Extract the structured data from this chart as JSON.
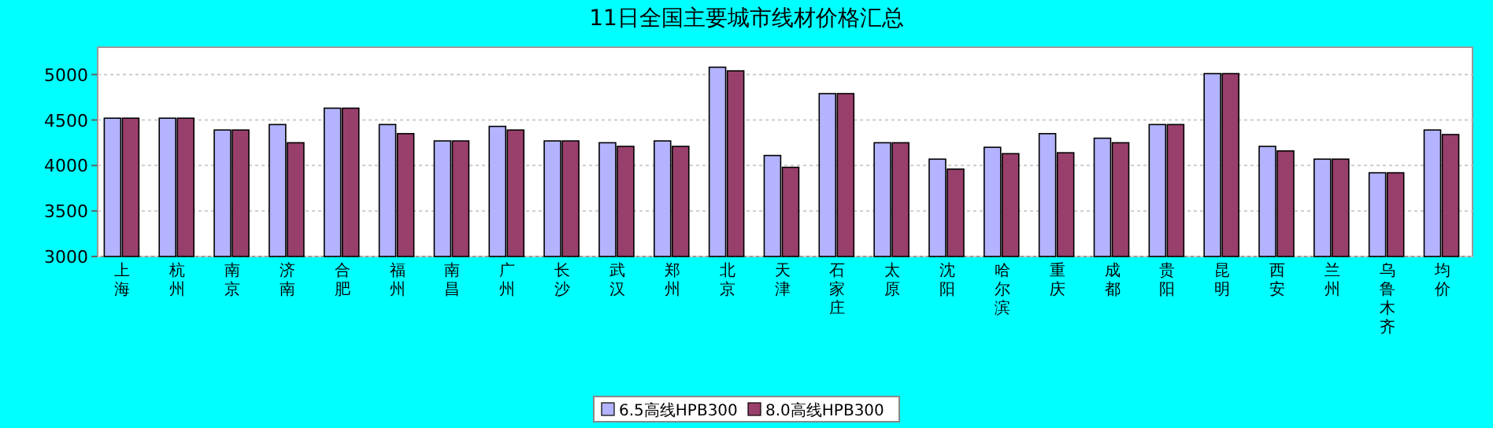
{
  "chart_data": {
    "type": "bar",
    "title": "11日全国主要城市线材价格汇总",
    "categories": [
      "上海",
      "杭州",
      "南京",
      "济南",
      "合肥",
      "福州",
      "南昌",
      "广州",
      "长沙",
      "武汉",
      "郑州",
      "北京",
      "天津",
      "石家庄",
      "太原",
      "沈阳",
      "哈尔滨",
      "重庆",
      "成都",
      "贵阳",
      "昆明",
      "西安",
      "兰州",
      "乌鲁木齐",
      "均价"
    ],
    "series": [
      {
        "name": "6.5高线HPB300",
        "color": "#b3b3ff",
        "values": [
          4520,
          4520,
          4390,
          4450,
          4630,
          4450,
          4270,
          4430,
          4270,
          4250,
          4270,
          5080,
          4110,
          4790,
          4250,
          4070,
          4200,
          4350,
          4300,
          4450,
          5010,
          4210,
          4070,
          3920,
          4390
        ]
      },
      {
        "name": "8.0高线HPB300",
        "color": "#993f6b",
        "values": [
          4520,
          4520,
          4390,
          4250,
          4630,
          4350,
          4270,
          4390,
          4270,
          4210,
          4210,
          5040,
          3980,
          4790,
          4250,
          3960,
          4130,
          4140,
          4250,
          4450,
          5010,
          4160,
          4070,
          3920,
          4340
        ]
      }
    ],
    "ylim": [
      3000,
      5300
    ],
    "yticks": [
      3000,
      3500,
      4000,
      4500,
      5000
    ],
    "grid": "y",
    "legend": "bottom"
  }
}
